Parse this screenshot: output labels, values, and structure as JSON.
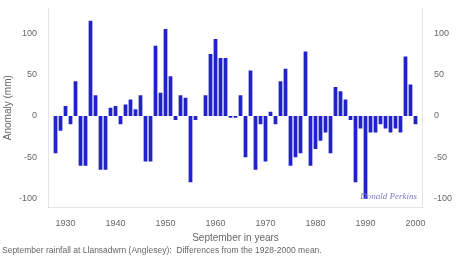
{
  "chart_data": {
    "type": "bar",
    "x": [
      1928,
      1929,
      1930,
      1931,
      1932,
      1933,
      1934,
      1935,
      1936,
      1937,
      1938,
      1939,
      1940,
      1941,
      1942,
      1943,
      1944,
      1945,
      1946,
      1947,
      1948,
      1949,
      1950,
      1951,
      1952,
      1953,
      1954,
      1955,
      1956,
      1957,
      1958,
      1959,
      1960,
      1961,
      1962,
      1963,
      1964,
      1965,
      1966,
      1967,
      1968,
      1969,
      1970,
      1971,
      1972,
      1973,
      1974,
      1975,
      1976,
      1977,
      1978,
      1979,
      1980,
      1981,
      1982,
      1983,
      1984,
      1985,
      1986,
      1987,
      1988,
      1989,
      1990,
      1991,
      1992,
      1993,
      1994,
      1995,
      1996,
      1997,
      1998,
      1999,
      2000
    ],
    "values": [
      -45,
      -18,
      12,
      -10,
      42,
      -60,
      -60,
      115,
      25,
      -65,
      -65,
      10,
      12,
      -10,
      14,
      20,
      8,
      25,
      -55,
      -55,
      85,
      28,
      105,
      48,
      -5,
      25,
      22,
      -80,
      -5,
      0,
      25,
      75,
      93,
      70,
      70,
      -2,
      -2,
      25,
      -50,
      55,
      -65,
      -10,
      -55,
      5,
      -10,
      42,
      57,
      -60,
      -50,
      -45,
      78,
      -60,
      -40,
      -30,
      -20,
      -45,
      35,
      30,
      20,
      -5,
      -80,
      -15,
      -100,
      -20,
      -20,
      -10,
      -15,
      -20,
      -15,
      -20,
      72,
      38,
      -10
    ],
    "color": "#2222cc",
    "xlabel": "September in years",
    "ylabel": "Anomaly (mm)",
    "caption": "September rainfall at Llansadwrn (Anglesey):  Differences from the 1928-2000 mean.",
    "annotations": [
      {
        "text": "Donald Perkins",
        "color": "#7777cc"
      }
    ],
    "xlim": [
      1926.5,
      2001.5
    ],
    "xticks": [
      1930,
      1940,
      1950,
      1960,
      1970,
      1980,
      1990,
      2000
    ],
    "ylim": [
      -110,
      130
    ],
    "yticks": [
      -100,
      -50,
      0,
      50,
      100
    ],
    "y2lim": [
      -110,
      130
    ],
    "y2ticks": [
      -100,
      -50,
      0,
      50,
      100
    ],
    "grid": false
  }
}
